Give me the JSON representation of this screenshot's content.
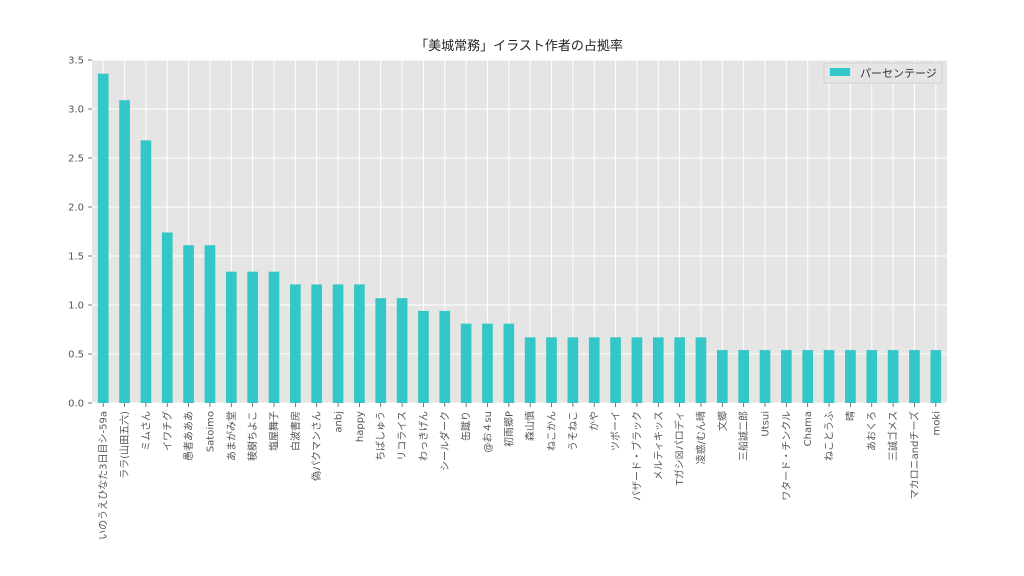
{
  "chart_data": {
    "type": "bar",
    "title": "「美城常務」イラスト作者の占拠率",
    "xlabel": "",
    "ylabel": "",
    "ylim": [
      0,
      3.5
    ],
    "yticks": [
      0.0,
      0.5,
      1.0,
      1.5,
      2.0,
      2.5,
      3.0,
      3.5
    ],
    "ytick_labels": [
      "0.0",
      "0.5",
      "1.0",
      "1.5",
      "2.0",
      "2.5",
      "3.0",
      "3.5"
    ],
    "grid": true,
    "legend_position": "top-right",
    "categories": [
      "いのうえひなた3日目シ-59a",
      "ララ(山田五六)",
      "ミムさん",
      "イワチグ",
      "愚者あああ",
      "Satoimo",
      "あまがみ堂",
      "稜樹ちよこ",
      "塩屋舞子",
      "白波書房",
      "偽パクマンさん",
      "anbj",
      "happy",
      "ちばしゅう",
      "リコライス",
      "わっきげん",
      "シールダーク",
      "缶蹴り",
      "@お４su",
      "初雨郷P",
      "森山慎",
      "ねこかん",
      "うそねこ",
      "かや",
      "ツボーイ",
      "バザード・ブラック",
      "メルティキッス",
      "Tガシ☒パロディ",
      "凌惑/むん晴",
      "文郷",
      "三船誠二郎",
      "Utsui",
      "ワタード・チンクル",
      "Chama",
      "ねことうふ",
      "晴",
      "あおくろ",
      "三誠ゴメス",
      "マカロニandチーズ",
      "moki"
    ],
    "series": [
      {
        "name": "パーセンテージ",
        "color": "#33c7c7",
        "values": [
          3.36,
          3.09,
          2.68,
          1.74,
          1.61,
          1.61,
          1.34,
          1.34,
          1.34,
          1.21,
          1.21,
          1.21,
          1.21,
          1.07,
          1.07,
          0.94,
          0.94,
          0.81,
          0.81,
          0.81,
          0.67,
          0.67,
          0.67,
          0.67,
          0.67,
          0.67,
          0.67,
          0.67,
          0.67,
          0.54,
          0.54,
          0.54,
          0.54,
          0.54,
          0.54,
          0.54,
          0.54,
          0.54,
          0.54,
          0.54
        ]
      }
    ],
    "colors": {
      "plot_background": "#e5e5e5",
      "grid": "#ffffff",
      "bar": "#33c7c7"
    }
  }
}
